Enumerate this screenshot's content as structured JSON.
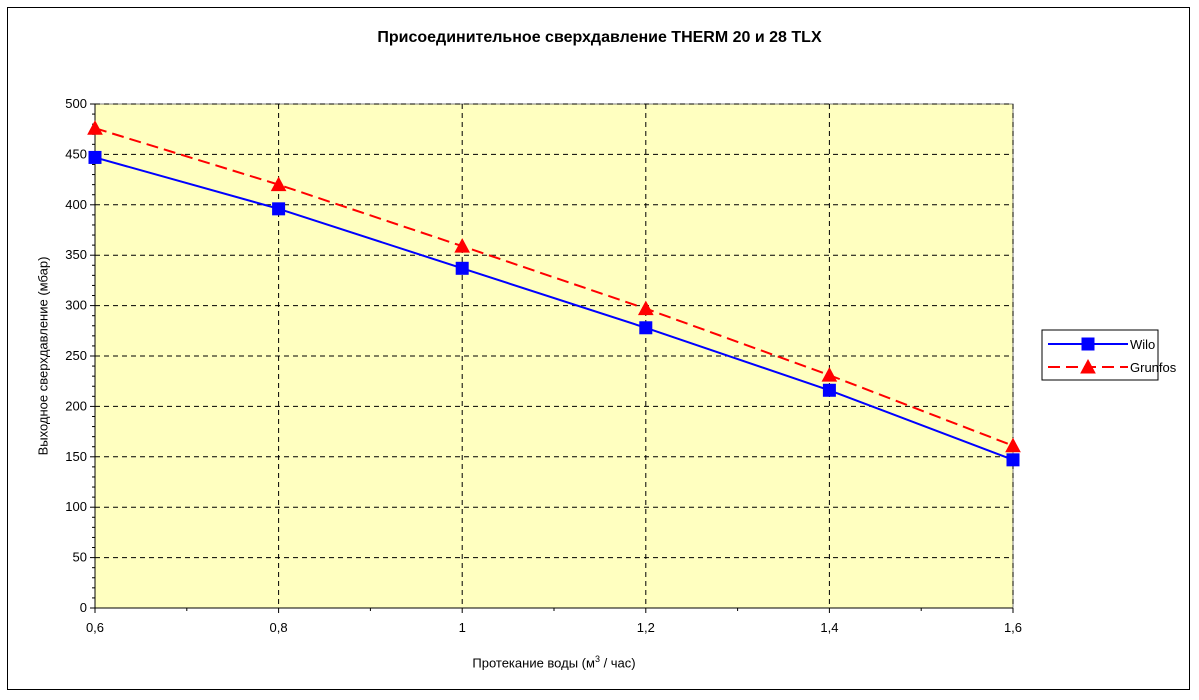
{
  "chart_data": {
    "type": "line",
    "title": "Присоединительное сверхдавление THERM 20 и 28 TLX",
    "xlabel_main": "Протекание воды (м",
    "xlabel_sup": "3",
    "xlabel_tail": " / час)",
    "ylabel": "Выходное сверхдавление (мбар)",
    "x": [
      0.6,
      0.8,
      1.0,
      1.2,
      1.4,
      1.6
    ],
    "x_tick_labels": [
      "0,6",
      "0,8",
      "1",
      "1,2",
      "1,4",
      "1,6"
    ],
    "y_ticks": [
      0,
      50,
      100,
      150,
      200,
      250,
      300,
      350,
      400,
      450,
      500
    ],
    "xlim": [
      0.6,
      1.6
    ],
    "ylim": [
      0,
      500
    ],
    "grid": true,
    "legend_position": "right",
    "plot_background": "#ffffc0",
    "series": [
      {
        "name": "Wilo",
        "values": [
          447,
          396,
          337,
          278,
          216,
          147
        ],
        "color": "#0000ff",
        "marker": "square",
        "line": "solid"
      },
      {
        "name": "Grunfos",
        "values": [
          476,
          420,
          359,
          297,
          231,
          161
        ],
        "color": "#ff0000",
        "marker": "triangle",
        "line": "dashed"
      }
    ]
  }
}
